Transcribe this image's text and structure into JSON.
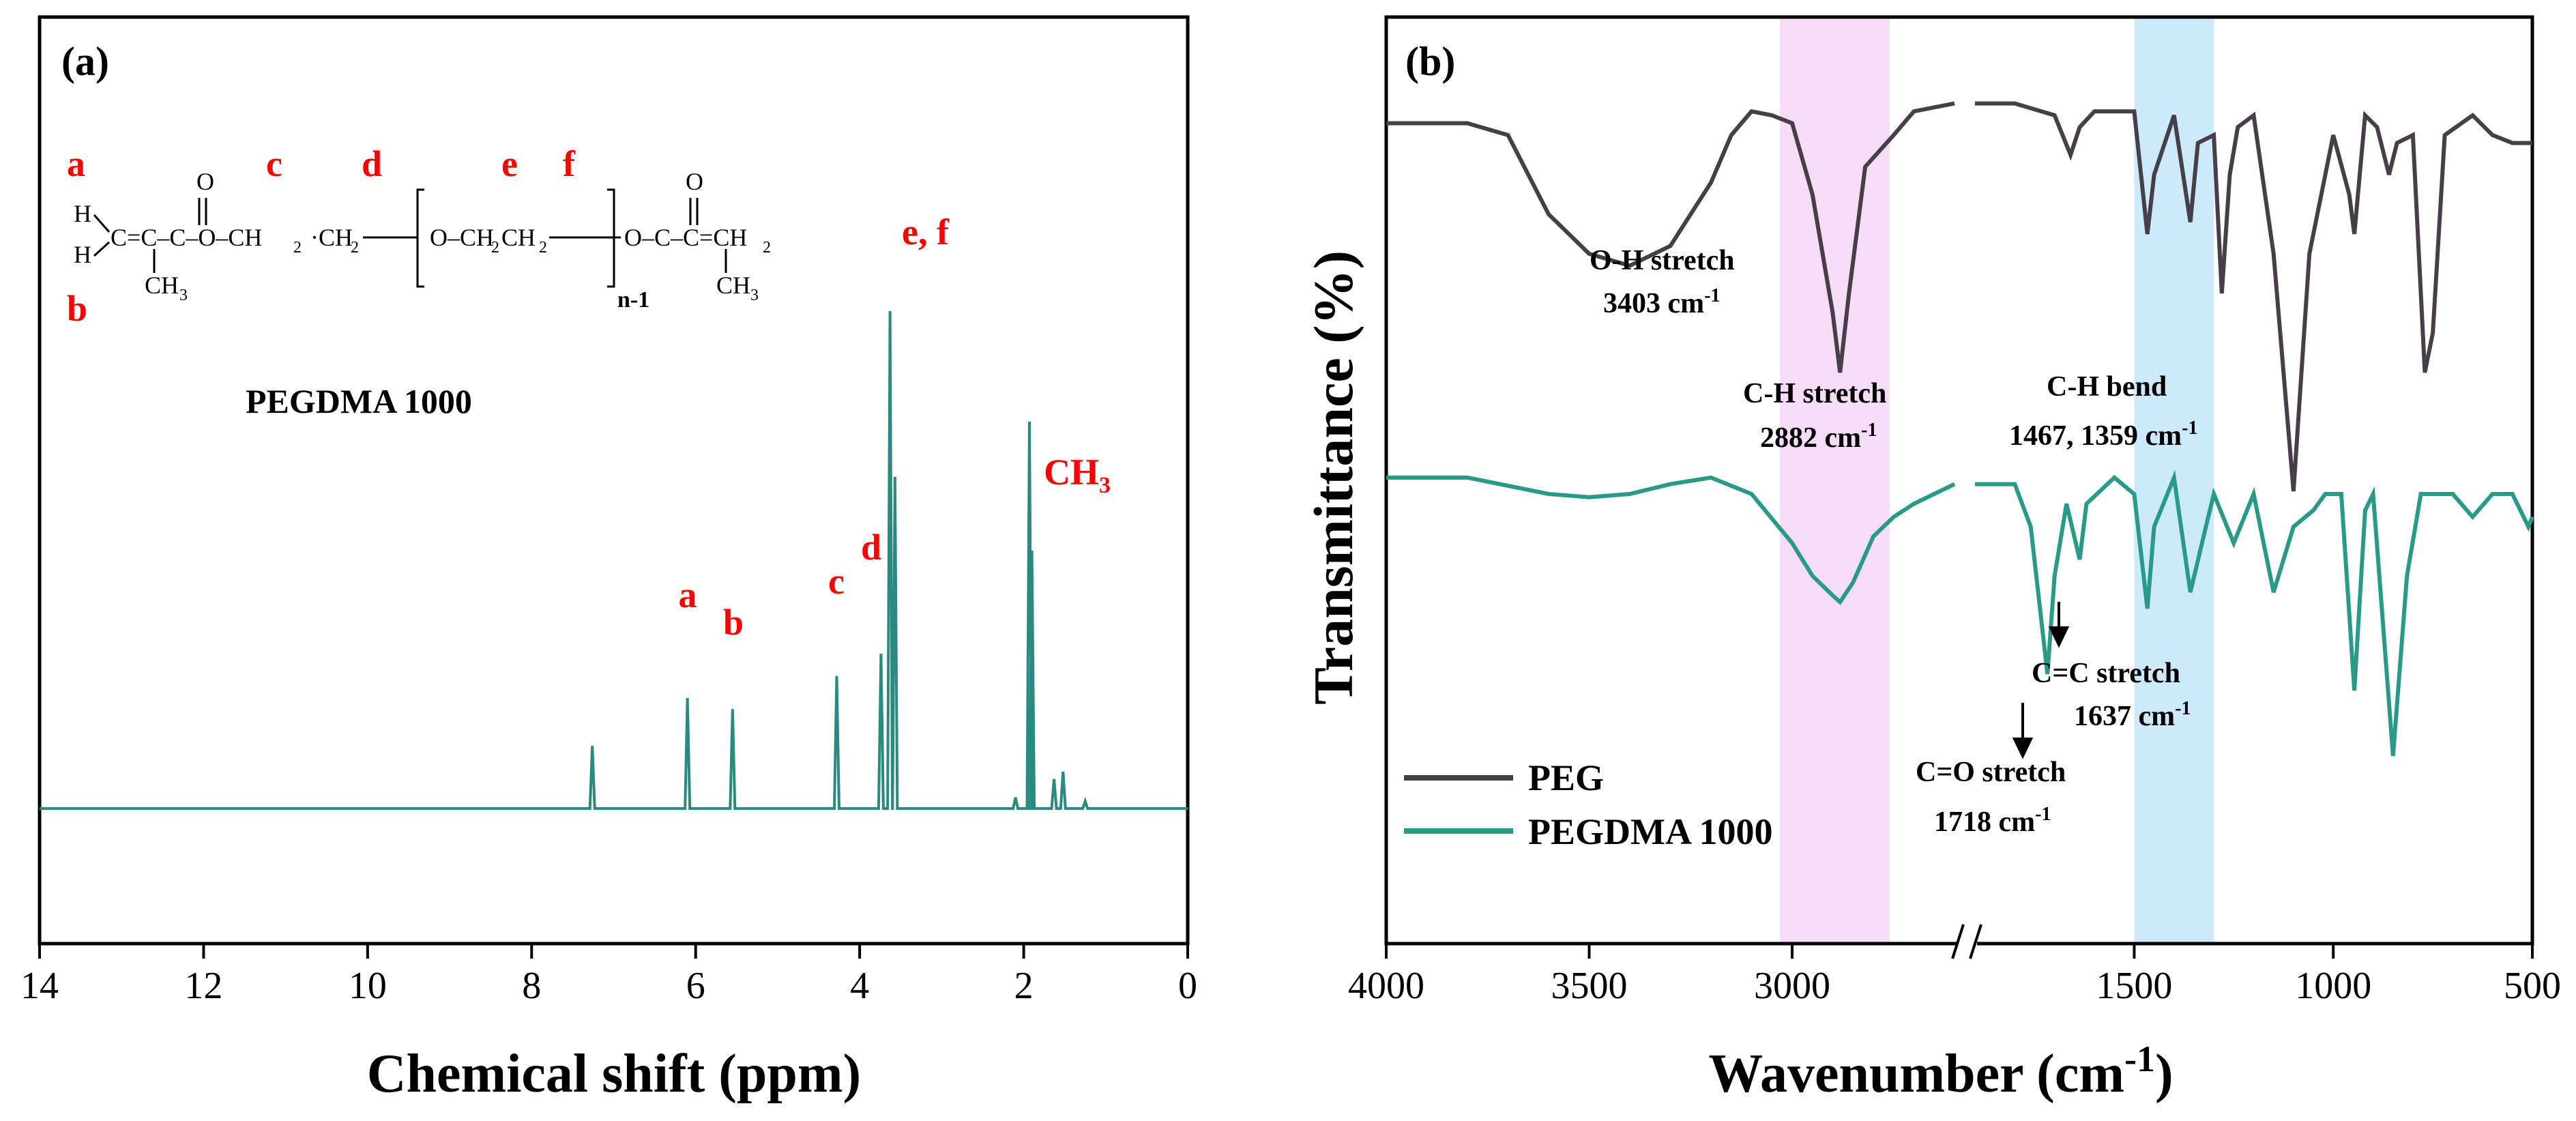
{
  "colors": {
    "nmr_line": "#2a8a80",
    "peg": "#463f48",
    "pegdma": "#2a9a88",
    "label_red": "#ff0000",
    "ch_band": "#f6dcf6",
    "bend_band": "#cdeafb",
    "text": "#000000"
  },
  "chart_data": [
    {
      "type": "line",
      "panel": "(a)",
      "xlabel": "Chemical shift (ppm)",
      "ylabel": "",
      "xlim": [
        14,
        0
      ],
      "xticks": [
        14,
        12,
        10,
        8,
        6,
        4,
        2,
        0
      ],
      "structure_labels": {
        "a": "a",
        "b": "b",
        "c": "c",
        "d": "d",
        "e": "e",
        "f": "f",
        "sub": "n-1"
      },
      "sample": "PEGDMA 1000",
      "peaks": [
        {
          "x": 7.26,
          "h": 0.17,
          "label": ""
        },
        {
          "x": 6.1,
          "h": 0.3,
          "label": "a"
        },
        {
          "x": 5.55,
          "h": 0.27,
          "label": "b"
        },
        {
          "x": 4.28,
          "h": 0.36,
          "label": "c"
        },
        {
          "x": 3.74,
          "h": 0.42,
          "label": "d"
        },
        {
          "x": 3.63,
          "h": 1.35,
          "label": "e, f"
        },
        {
          "x": 3.57,
          "h": 0.9,
          "label": ""
        },
        {
          "x": 1.93,
          "h": 1.05,
          "label": ""
        },
        {
          "x": 1.9,
          "h": 0.7,
          "label": "CH3"
        },
        {
          "x": 1.63,
          "h": 0.08,
          "label": ""
        },
        {
          "x": 1.52,
          "h": 0.1,
          "label": ""
        },
        {
          "x": 2.1,
          "h": 0.03,
          "label": ""
        },
        {
          "x": 1.25,
          "h": 0.02,
          "label": ""
        }
      ],
      "peak_labels": {
        "a": "a",
        "b": "b",
        "c": "c",
        "d": "d",
        "ef": "e, f",
        "ch3": "CH",
        "ch3_sub": "3"
      }
    },
    {
      "type": "line",
      "panel": "(b)",
      "xlabel": "Wavenumber (cm",
      "xlabel_sup": "-1",
      "xlabel_end": ")",
      "ylabel": "Transmittance (%)",
      "xticks": [
        "4000",
        "3500",
        "3000",
        "1500",
        "1000",
        "500"
      ],
      "xrange_segments": [
        [
          4000,
          2600
        ],
        [
          1900,
          500
        ]
      ],
      "series": [
        {
          "name": "PEG",
          "points": [
            [
              4000,
              0.07
            ],
            [
              3800,
              0.07
            ],
            [
              3700,
              0.1
            ],
            [
              3600,
              0.3
            ],
            [
              3500,
              0.4
            ],
            [
              3400,
              0.43
            ],
            [
              3300,
              0.38
            ],
            [
              3200,
              0.22
            ],
            [
              3150,
              0.1
            ],
            [
              3100,
              0.04
            ],
            [
              3050,
              0.05
            ],
            [
              3000,
              0.07
            ],
            [
              2950,
              0.25
            ],
            [
              2900,
              0.55
            ],
            [
              2882,
              0.7
            ],
            [
              2860,
              0.5
            ],
            [
              2820,
              0.18
            ],
            [
              2750,
              0.1
            ],
            [
              2700,
              0.04
            ],
            [
              2600,
              0.02
            ],
            [
              1900,
              0.02
            ],
            [
              1800,
              0.02
            ],
            [
              1700,
              0.05
            ],
            [
              1660,
              0.15
            ],
            [
              1637,
              0.08
            ],
            [
              1600,
              0.04
            ],
            [
              1500,
              0.04
            ],
            [
              1467,
              0.35
            ],
            [
              1450,
              0.2
            ],
            [
              1400,
              0.05
            ],
            [
              1359,
              0.32
            ],
            [
              1340,
              0.12
            ],
            [
              1300,
              0.1
            ],
            [
              1280,
              0.5
            ],
            [
              1260,
              0.2
            ],
            [
              1240,
              0.08
            ],
            [
              1200,
              0.05
            ],
            [
              1150,
              0.4
            ],
            [
              1100,
              1.0
            ],
            [
              1060,
              0.4
            ],
            [
              1000,
              0.1
            ],
            [
              960,
              0.25
            ],
            [
              947,
              0.35
            ],
            [
              920,
              0.05
            ],
            [
              890,
              0.08
            ],
            [
              860,
              0.2
            ],
            [
              840,
              0.12
            ],
            [
              800,
              0.1
            ],
            [
              770,
              0.7
            ],
            [
              750,
              0.6
            ],
            [
              720,
              0.1
            ],
            [
              650,
              0.05
            ],
            [
              600,
              0.1
            ],
            [
              550,
              0.12
            ],
            [
              500,
              0.12
            ]
          ]
        },
        {
          "name": "PEGDMA 1000",
          "points": [
            [
              4000,
              0.0
            ],
            [
              3800,
              0.0
            ],
            [
              3600,
              0.05
            ],
            [
              3500,
              0.06
            ],
            [
              3400,
              0.05
            ],
            [
              3300,
              0.02
            ],
            [
              3200,
              0.0
            ],
            [
              3100,
              0.05
            ],
            [
              3000,
              0.2
            ],
            [
              2950,
              0.3
            ],
            [
              2900,
              0.36
            ],
            [
              2882,
              0.38
            ],
            [
              2850,
              0.32
            ],
            [
              2800,
              0.18
            ],
            [
              2750,
              0.12
            ],
            [
              2700,
              0.08
            ],
            [
              2600,
              0.02
            ],
            [
              1900,
              0.02
            ],
            [
              1800,
              0.02
            ],
            [
              1760,
              0.15
            ],
            [
              1718,
              0.6
            ],
            [
              1700,
              0.3
            ],
            [
              1670,
              0.08
            ],
            [
              1637,
              0.25
            ],
            [
              1620,
              0.08
            ],
            [
              1550,
              0.0
            ],
            [
              1500,
              0.05
            ],
            [
              1467,
              0.4
            ],
            [
              1450,
              0.15
            ],
            [
              1400,
              0.0
            ],
            [
              1359,
              0.35
            ],
            [
              1320,
              0.15
            ],
            [
              1300,
              0.05
            ],
            [
              1250,
              0.2
            ],
            [
              1200,
              0.05
            ],
            [
              1150,
              0.35
            ],
            [
              1100,
              0.15
            ],
            [
              1050,
              0.1
            ],
            [
              1020,
              0.05
            ],
            [
              980,
              0.05
            ],
            [
              947,
              0.65
            ],
            [
              920,
              0.1
            ],
            [
              900,
              0.05
            ],
            [
              850,
              0.85
            ],
            [
              815,
              0.3
            ],
            [
              780,
              0.05
            ],
            [
              700,
              0.05
            ],
            [
              650,
              0.12
            ],
            [
              600,
              0.05
            ],
            [
              550,
              0.05
            ],
            [
              510,
              0.15
            ],
            [
              500,
              0.12
            ]
          ]
        }
      ],
      "bands": [
        {
          "from": 3030,
          "to": 2760,
          "name": "C-H stretch"
        },
        {
          "from": 1500,
          "to": 1300,
          "name": "C-H bend"
        }
      ],
      "annotations": {
        "oh": "O-H stretch",
        "oh_val": "3403 cm",
        "ch": "C-H stretch",
        "ch_val": "2882 cm",
        "chb": "C-H bend",
        "chb_val": "1467, 1359 cm",
        "cc": "C=C stretch",
        "cc_val": "1637 cm",
        "co": "C=O stretch",
        "co_val": "1718 cm",
        "sup": "-1"
      },
      "legend": [
        "PEG",
        "PEGDMA 1000"
      ]
    }
  ]
}
